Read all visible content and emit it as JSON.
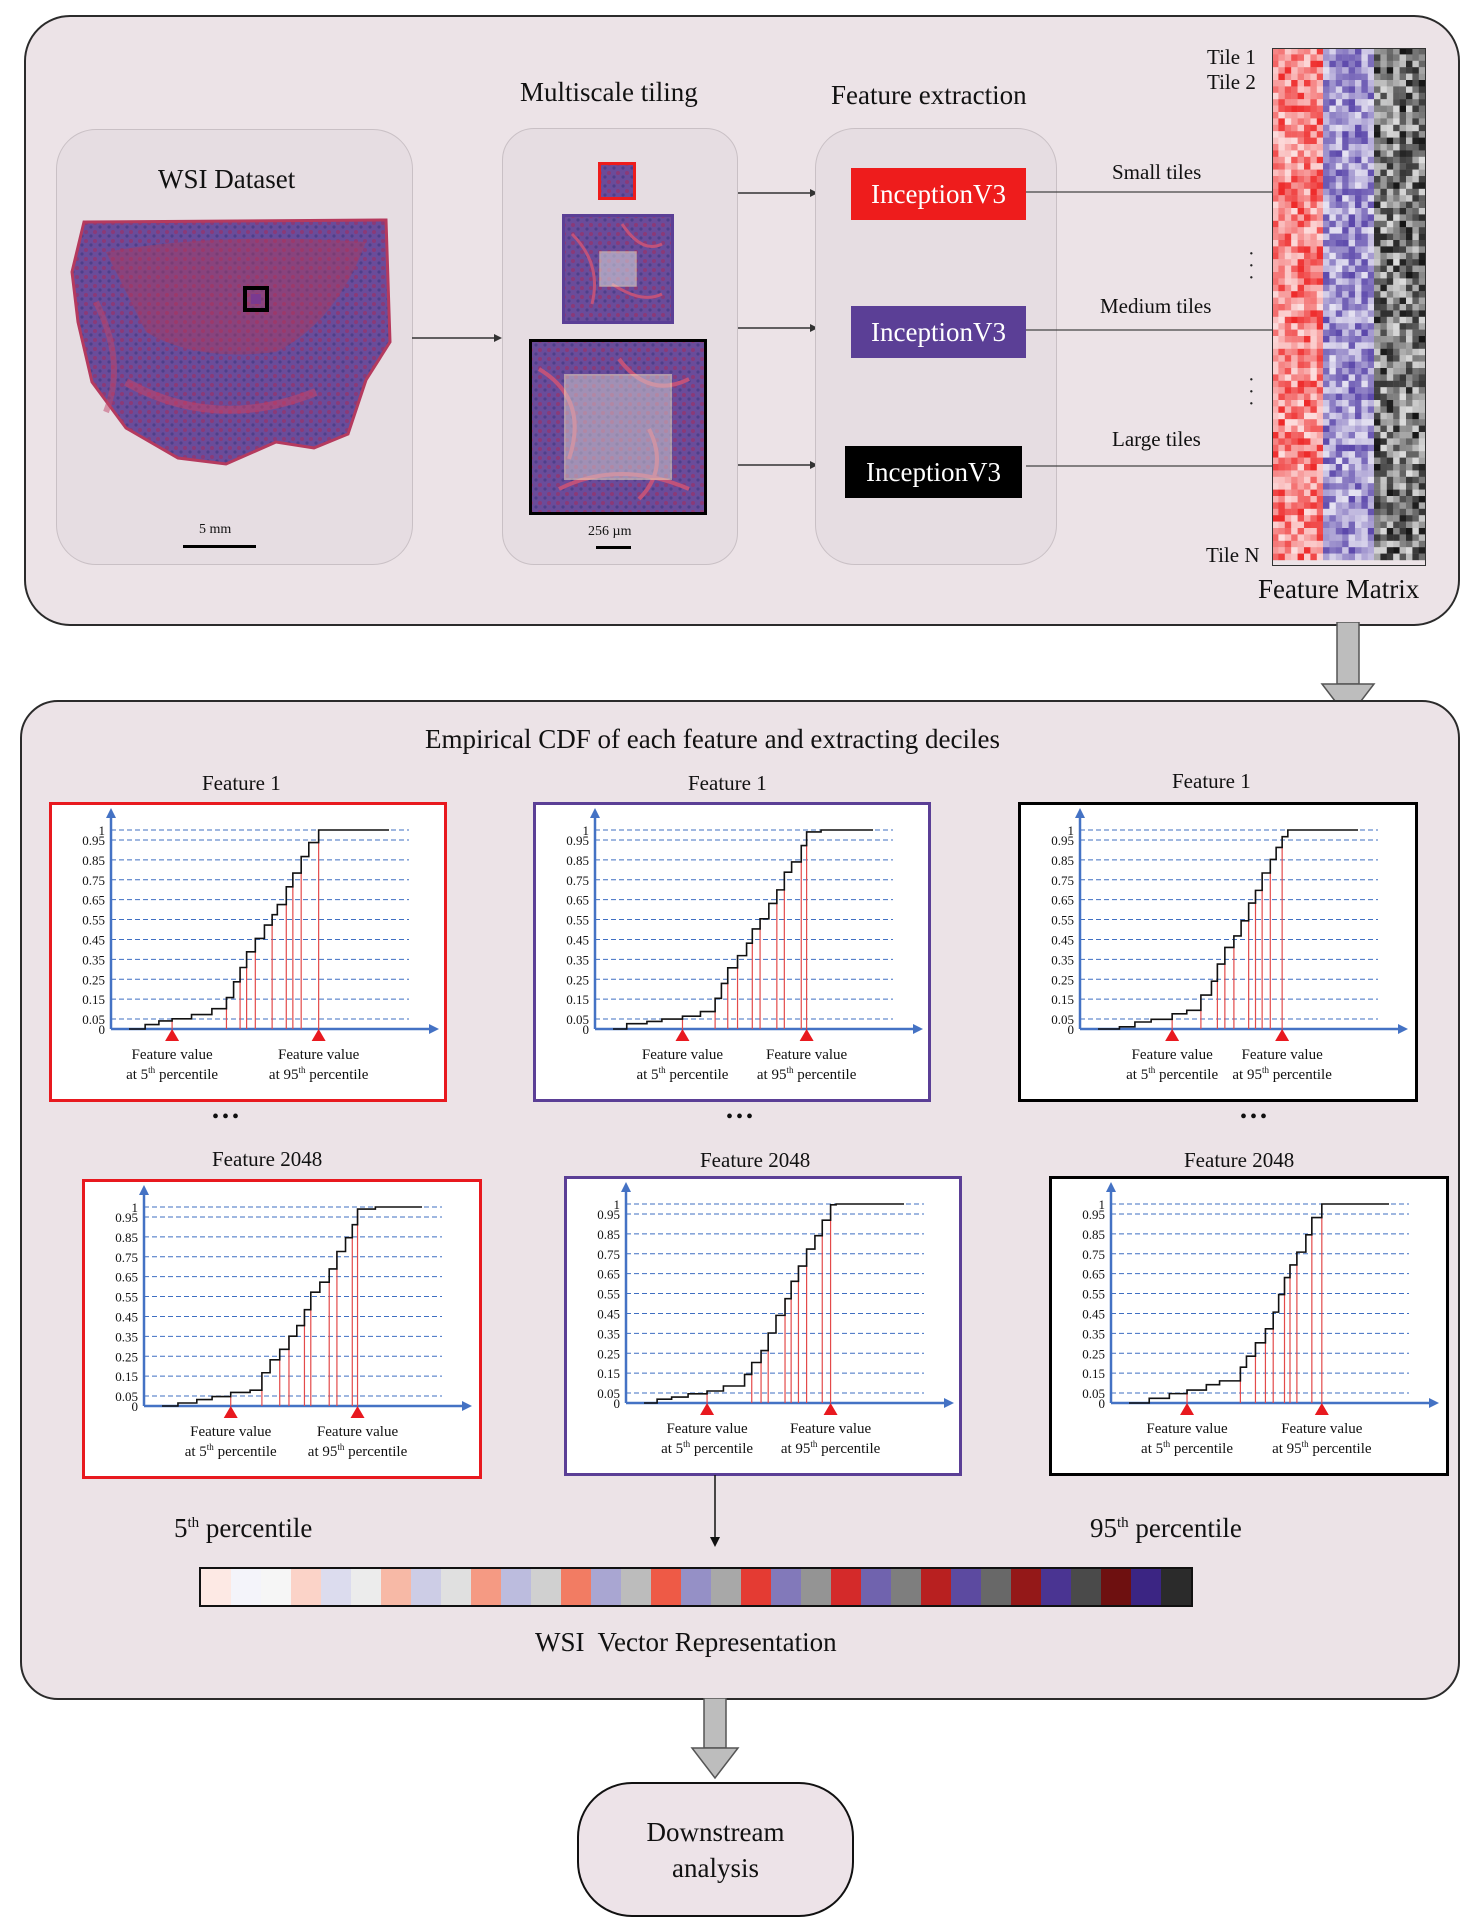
{
  "top": {
    "wsi_title": "WSI Dataset",
    "wsi_scale": "5 mm",
    "tiling_title": "Multiscale tiling",
    "tiling_scale": "256 µm",
    "fe_title": "Feature extraction",
    "nets": [
      {
        "label": "InceptionV3",
        "color": "#ee1c1c"
      },
      {
        "label": "InceptionV3",
        "color": "#5b3f96"
      },
      {
        "label": "InceptionV3",
        "color": "#000000"
      }
    ],
    "tile_sizes": [
      "Small tiles",
      "Medium tiles",
      "Large tiles"
    ],
    "tile1": "Tile 1",
    "tile2": "Tile 2",
    "tileN": "Tile N",
    "matrix_label": "Feature Matrix"
  },
  "bottom": {
    "title": "Empirical CDF of each feature and extracting deciles",
    "ellipsis": "•••",
    "p5_base": "5",
    "p95_base": "95",
    "sup": "th",
    "pct_word": " percentile",
    "vector_label": "WSI  Vector Representation"
  },
  "downstream": [
    "Downstream",
    "analysis"
  ],
  "chart_data": {
    "type": "line",
    "ylim": [
      0,
      1
    ],
    "yticks": [
      "1",
      "0.95",
      "0.85",
      "0.75",
      "0.65",
      "0.55",
      "0.45",
      "0.35",
      "0.25",
      "0.15",
      "0.05",
      "0"
    ],
    "annotation_left": [
      "Feature value",
      "at 5",
      "th",
      " percentile"
    ],
    "annotation_right": [
      "Feature value",
      "at 95",
      "th",
      " percentile"
    ],
    "panels": [
      {
        "title": "Feature 1",
        "color": "#e8191f"
      },
      {
        "title": "Feature 1",
        "color": "#5b3f96"
      },
      {
        "title": "Feature 1",
        "color": "#000000"
      },
      {
        "title": "Feature 2048",
        "color": "#e8191f"
      },
      {
        "title": "Feature 2048",
        "color": "#5b3f96"
      },
      {
        "title": "Feature 2048",
        "color": "#000000"
      }
    ]
  },
  "colors": {
    "decile_line": "#e34a4a",
    "grid": "#3f6fc2",
    "axis": "#4472c4",
    "panel_bg": "#ece3e7",
    "vector": [
      "#fde9e4",
      "#f4f4fa",
      "#f6f6f6",
      "#fbd3c8",
      "#dcdcee",
      "#ececec",
      "#f7b9a6",
      "#cdcde6",
      "#e0e0e0",
      "#f59a83",
      "#bcbcde",
      "#d0d0d0",
      "#f27c63",
      "#a9a6d2",
      "#bcbcbc",
      "#ee5a46",
      "#9590c6",
      "#a8a8a8",
      "#e43b33",
      "#8279ba",
      "#949494",
      "#d42a2a",
      "#7063ae",
      "#7e7e7e",
      "#b82020",
      "#5c4aa0",
      "#686868",
      "#941818",
      "#4a3492",
      "#4a4a4a",
      "#6e1010",
      "#3b2583",
      "#2b2b2b"
    ]
  }
}
